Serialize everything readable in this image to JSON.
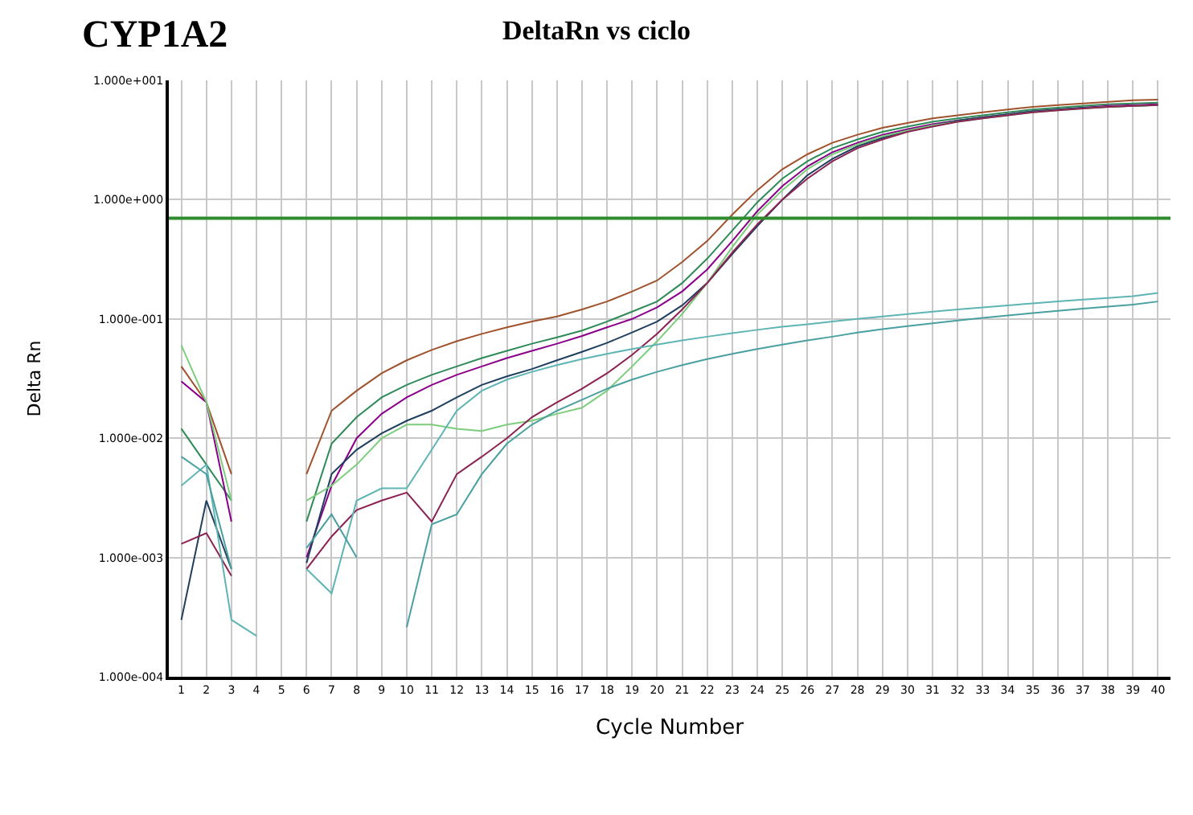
{
  "chart_data": {
    "type": "line",
    "title": "DeltaRn vs ciclo",
    "subtitle": "CYP1A2",
    "xlabel": "Cycle Number",
    "ylabel": "Delta Rn",
    "x": [
      1,
      2,
      3,
      4,
      5,
      6,
      7,
      8,
      9,
      10,
      11,
      12,
      13,
      14,
      15,
      16,
      17,
      18,
      19,
      20,
      21,
      22,
      23,
      24,
      25,
      26,
      27,
      28,
      29,
      30,
      31,
      32,
      33,
      34,
      35,
      36,
      37,
      38,
      39,
      40
    ],
    "xlim": [
      0.5,
      40.5
    ],
    "xticks": [
      1,
      2,
      3,
      4,
      5,
      6,
      7,
      8,
      9,
      10,
      11,
      12,
      13,
      14,
      15,
      16,
      17,
      18,
      19,
      20,
      21,
      22,
      23,
      24,
      25,
      26,
      27,
      28,
      29,
      30,
      31,
      32,
      33,
      34,
      35,
      36,
      37,
      38,
      39,
      40
    ],
    "ylim": [
      0.0001,
      10
    ],
    "log": true,
    "yticks": [
      {
        "value": 0.0001,
        "label": "1.000e-004"
      },
      {
        "value": 0.001,
        "label": "1.000e-003"
      },
      {
        "value": 0.01,
        "label": "1.000e-002"
      },
      {
        "value": 0.1,
        "label": "1.000e-001"
      },
      {
        "value": 1,
        "label": "1.000e+000"
      },
      {
        "value": 10,
        "label": "1.000e+001"
      }
    ],
    "grid": true,
    "marker": "none",
    "line_style": "solid",
    "ref_lines": [
      {
        "axis": "y",
        "value": 0.7,
        "color": "#2e8b2e"
      }
    ],
    "series": [
      {
        "color": "#a0522d",
        "values": [
          0.04,
          0.02,
          0.005,
          null,
          null,
          0.005,
          0.017,
          0.025,
          0.035,
          0.045,
          0.055,
          0.065,
          0.075,
          0.085,
          0.095,
          0.105,
          0.12,
          0.14,
          0.17,
          0.21,
          0.3,
          0.45,
          0.75,
          1.2,
          1.8,
          2.4,
          3.0,
          3.5,
          4.0,
          4.4,
          4.8,
          5.1,
          5.4,
          5.7,
          6.0,
          6.2,
          6.4,
          6.6,
          6.8,
          6.9
        ]
      },
      {
        "color": "#2e8b57",
        "values": [
          0.012,
          0.006,
          0.003,
          null,
          null,
          0.002,
          0.009,
          0.015,
          0.022,
          0.028,
          0.034,
          0.04,
          0.047,
          0.054,
          0.062,
          0.07,
          0.08,
          0.095,
          0.115,
          0.14,
          0.2,
          0.32,
          0.55,
          0.95,
          1.5,
          2.1,
          2.7,
          3.2,
          3.7,
          4.1,
          4.5,
          4.8,
          5.1,
          5.4,
          5.7,
          5.9,
          6.1,
          6.3,
          6.4,
          6.5
        ]
      },
      {
        "color": "#8b008b",
        "values": [
          0.03,
          0.02,
          0.002,
          null,
          null,
          0.001,
          0.004,
          0.01,
          0.016,
          0.022,
          0.028,
          0.034,
          0.04,
          0.047,
          0.054,
          0.062,
          0.072,
          0.085,
          0.1,
          0.125,
          0.17,
          0.26,
          0.45,
          0.8,
          1.3,
          1.9,
          2.5,
          3.0,
          3.5,
          3.9,
          4.3,
          4.6,
          4.9,
          5.2,
          5.5,
          5.7,
          5.9,
          6.1,
          6.2,
          6.3
        ]
      },
      {
        "color": "#1f3f5f",
        "values": [
          0.0003,
          0.003,
          0.0008,
          null,
          null,
          0.0009,
          0.005,
          0.008,
          0.011,
          0.014,
          0.017,
          0.022,
          0.028,
          0.033,
          0.038,
          0.045,
          0.053,
          0.063,
          0.077,
          0.095,
          0.13,
          0.2,
          0.35,
          0.6,
          1.0,
          1.6,
          2.2,
          2.8,
          3.3,
          3.8,
          4.2,
          4.6,
          4.9,
          5.2,
          5.5,
          5.7,
          5.9,
          6.0,
          6.1,
          6.2
        ]
      },
      {
        "color": "#7ccd7c",
        "values": [
          0.06,
          0.02,
          0.003,
          null,
          null,
          0.003,
          0.004,
          0.006,
          0.01,
          0.013,
          0.013,
          0.012,
          0.0115,
          0.013,
          0.014,
          0.016,
          0.018,
          0.025,
          0.04,
          0.065,
          0.11,
          0.2,
          0.4,
          0.75,
          1.2,
          1.8,
          2.4,
          2.9,
          3.4,
          3.8,
          4.2,
          4.5,
          4.8,
          5.1,
          5.4,
          5.6,
          5.8,
          6.0,
          6.1,
          6.2
        ]
      },
      {
        "color": "#8b2252",
        "values": [
          0.0013,
          0.0016,
          0.0007,
          null,
          null,
          0.0008,
          0.0015,
          0.0025,
          0.003,
          0.0035,
          0.002,
          0.005,
          0.007,
          0.01,
          0.015,
          0.02,
          0.026,
          0.035,
          0.05,
          0.075,
          0.12,
          0.2,
          0.36,
          0.62,
          1.0,
          1.5,
          2.1,
          2.7,
          3.2,
          3.7,
          4.1,
          4.5,
          4.8,
          5.1,
          5.4,
          5.6,
          5.8,
          6.0,
          6.1,
          6.2
        ]
      },
      {
        "color": "#5fb4b4",
        "values": [
          0.004,
          0.006,
          0.0003,
          0.00022,
          null,
          0.0008,
          0.0005,
          0.003,
          0.0038,
          0.0038,
          0.008,
          0.017,
          0.025,
          0.031,
          0.036,
          0.041,
          0.046,
          0.051,
          0.056,
          0.061,
          0.066,
          0.071,
          0.076,
          0.081,
          0.086,
          0.09,
          0.095,
          0.1,
          0.105,
          0.11,
          0.115,
          0.12,
          0.125,
          0.13,
          0.135,
          0.14,
          0.145,
          0.15,
          0.155,
          0.165
        ]
      },
      {
        "color": "#4aa0a0",
        "values": [
          0.007,
          0.005,
          0.0008,
          null,
          null,
          0.0012,
          0.0023,
          0.001,
          null,
          0.00026,
          0.0019,
          0.0023,
          0.005,
          0.009,
          0.013,
          0.017,
          0.021,
          0.026,
          0.031,
          0.036,
          0.041,
          0.046,
          0.051,
          0.056,
          0.061,
          0.066,
          0.071,
          0.077,
          0.082,
          0.087,
          0.092,
          0.097,
          0.102,
          0.107,
          0.112,
          0.117,
          0.122,
          0.127,
          0.132,
          0.14
        ]
      }
    ]
  }
}
